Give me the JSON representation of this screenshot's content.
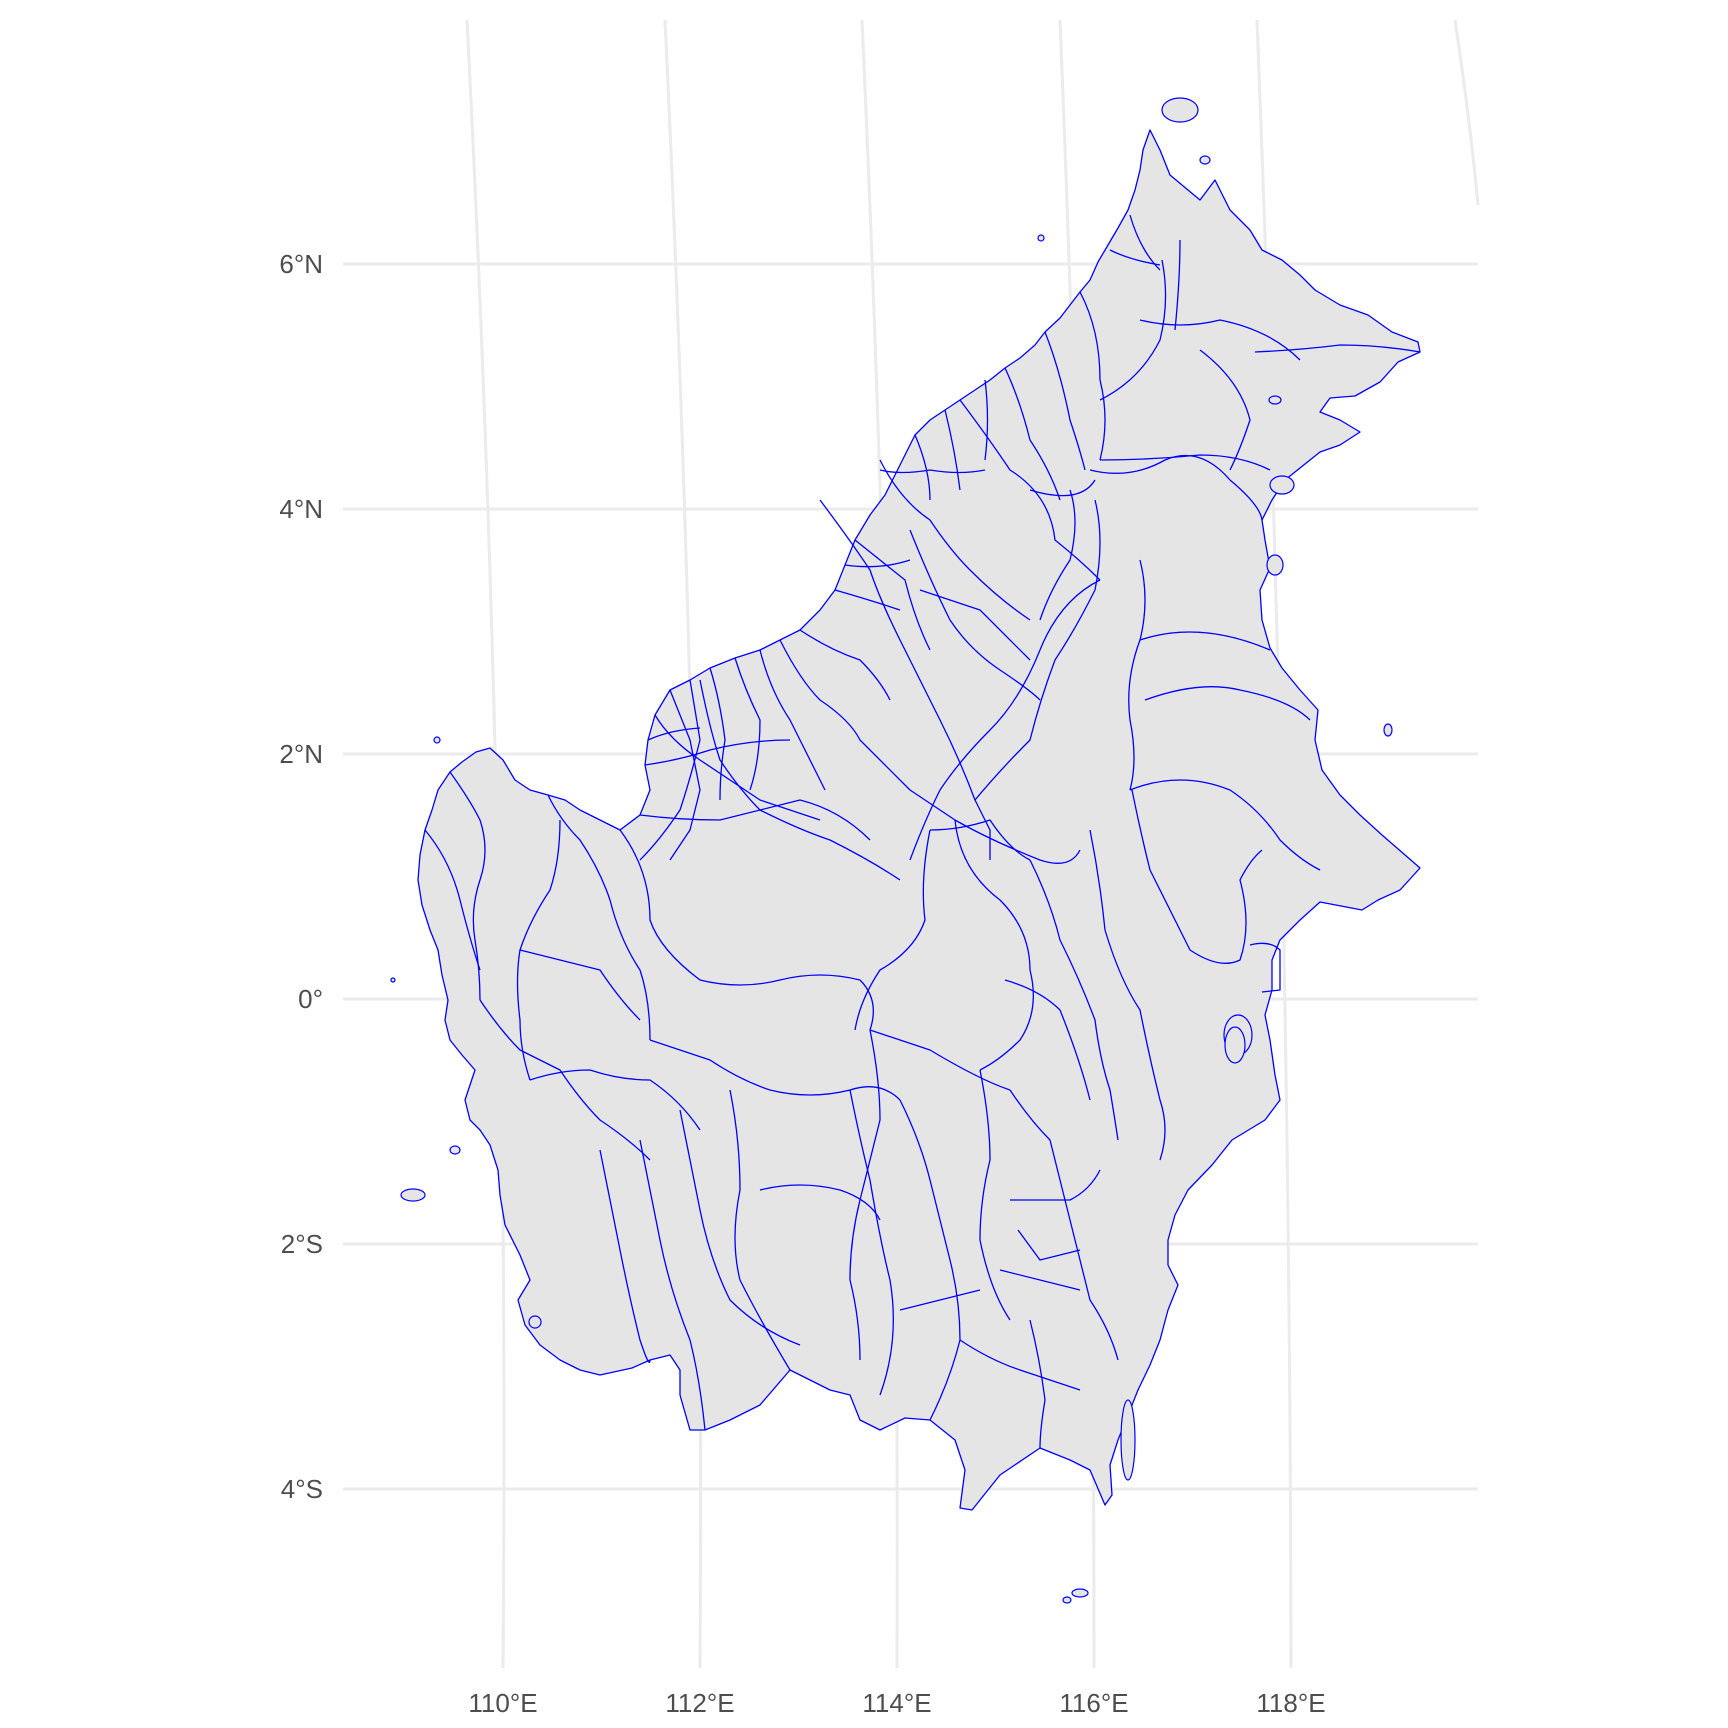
{
  "map": {
    "colors": {
      "land_fill": "#e5e5e5",
      "boundary_stroke": "#0000ff",
      "graticule": "#ebebeb",
      "label_text": "#4d4d4d",
      "background": "#ffffff"
    },
    "latitude_labels": [
      "6°N",
      "4°N",
      "2°N",
      "0°",
      "2°S",
      "4°S"
    ],
    "longitude_labels": [
      "110°E",
      "112°E",
      "114°E",
      "116°E",
      "118°E"
    ],
    "features": {
      "landmass": "Borneo",
      "subdivisions": "district-level administrative regions"
    }
  }
}
